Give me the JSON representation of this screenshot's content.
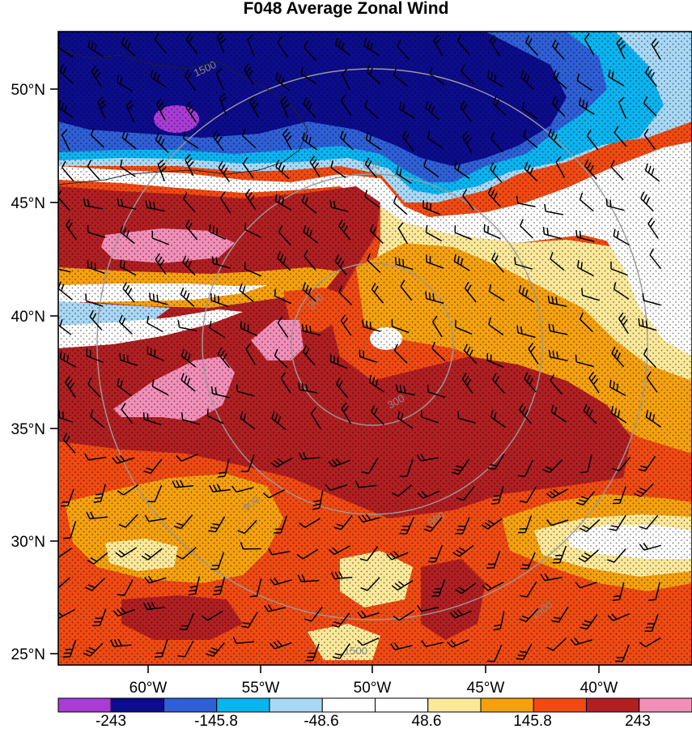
{
  "title": "F048 Average Zonal Wind",
  "map": {
    "lat_labels": [
      "50°N",
      "45°N",
      "40°N",
      "35°N",
      "30°N",
      "25°N"
    ],
    "lon_labels": [
      "60°W",
      "55°W",
      "50°W",
      "45°W",
      "40°W"
    ],
    "range_ring_labels": [
      "300",
      "900",
      "1500"
    ],
    "fill_colors": {
      "strong_east": "#a93bd6",
      "east_3": "#0c0c8c",
      "east_2": "#2e5fd6",
      "east_1": "#0ab4f0",
      "east_0": "#a8d8f5",
      "calm": "#ffffff",
      "west_0": "#fbe99a",
      "west_1": "#f5a10e",
      "west_2": "#f04a12",
      "west_3": "#b01f22",
      "strong_west": "#f28fb8"
    },
    "range_ring_color": "#9a9a9a",
    "stipple": "on",
    "wind_barbs": "on"
  },
  "colorbar": {
    "colors": [
      "#a93bd6",
      "#0c0c8c",
      "#2e5fd6",
      "#0ab4f0",
      "#a8d8f5",
      "#ffffff",
      "#ffffff",
      "#fbe99a",
      "#f5a10e",
      "#f04a12",
      "#b01f22",
      "#f28fb8"
    ],
    "labels": [
      "-243",
      "-145.8",
      "-48.6",
      "48.6",
      "145.8",
      "243"
    ]
  }
}
